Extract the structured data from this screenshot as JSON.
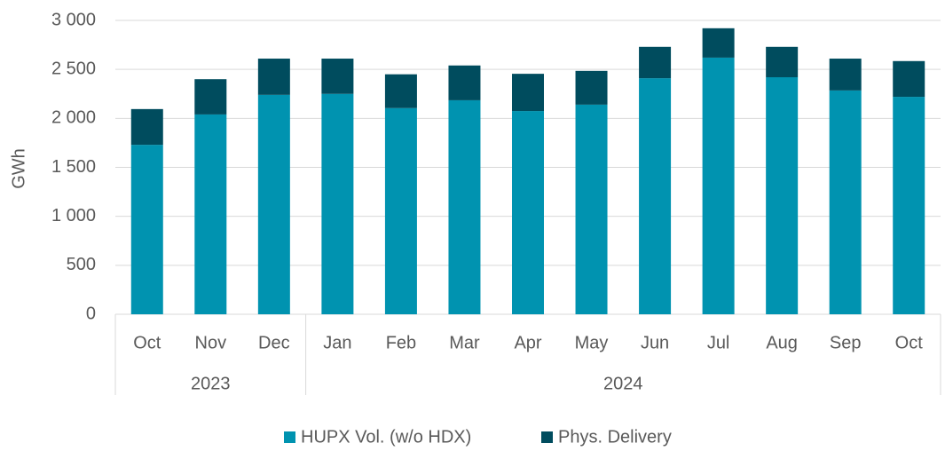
{
  "chart_data": {
    "type": "stacked_bar",
    "y_label": "GWh",
    "categories": [
      "Oct",
      "Nov",
      "Dec",
      "Jan",
      "Feb",
      "Mar",
      "Apr",
      "May",
      "Jun",
      "Jul",
      "Aug",
      "Sep",
      "Oct"
    ],
    "years": [
      "2023",
      "2023",
      "2023",
      "2024",
      "2024",
      "2024",
      "2024",
      "2024",
      "2024",
      "2024",
      "2024",
      "2024",
      "2024"
    ],
    "series": [
      {
        "name": "HUPX Vol. (w/o HDX)",
        "color": "#0093b0",
        "values": [
          1730,
          2040,
          2240,
          2250,
          2105,
          2185,
          2075,
          2140,
          2410,
          2620,
          2420,
          2285,
          2220
        ]
      },
      {
        "name": "Phys. Delivery",
        "color": "#004c5e",
        "values": [
          365,
          360,
          370,
          360,
          345,
          355,
          380,
          345,
          320,
          300,
          310,
          325,
          365
        ]
      }
    ],
    "ylim": [
      0,
      3000
    ],
    "yticks": [
      0,
      500,
      {
        "value": 1000,
        "label": "1 000"
      },
      {
        "value": 1500,
        "label": "1 500"
      },
      {
        "value": 2000,
        "label": "2 000"
      },
      {
        "value": 2500,
        "label": "2 500"
      },
      {
        "value": 3000,
        "label": "3 000"
      }
    ],
    "grid": true,
    "legend": "bottom"
  }
}
